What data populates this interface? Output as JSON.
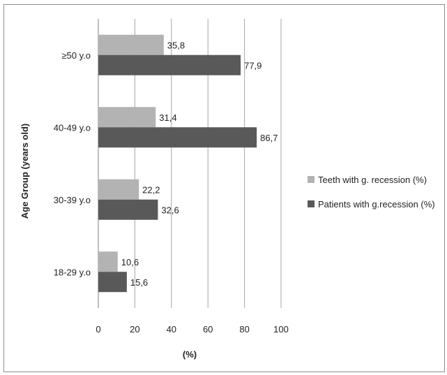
{
  "chart_data": {
    "type": "bar",
    "orientation": "horizontal",
    "categories": [
      "≥50 y.o",
      "40-49 y.o",
      "30-39 y.o",
      "18-29 y.o"
    ],
    "series": [
      {
        "name": "Teeth with g. recession (%)",
        "values": [
          35.8,
          31.4,
          22.2,
          10.6
        ],
        "labels": [
          "35,8",
          "31,4",
          "22,2",
          "10,6"
        ],
        "color": "#b3b3b3"
      },
      {
        "name": "Patients with g.recession (%)",
        "values": [
          77.9,
          86.7,
          32.6,
          15.6
        ],
        "labels": [
          "77,9",
          "86,7",
          "32,6",
          "15,6"
        ],
        "color": "#595959"
      }
    ],
    "xlabel": "(%)",
    "ylabel": "Age Group (years old)",
    "xlim": [
      0,
      100
    ],
    "xticks": [
      0,
      20,
      40,
      60,
      80,
      100
    ],
    "grid": "vertical",
    "legend_position": "right"
  }
}
